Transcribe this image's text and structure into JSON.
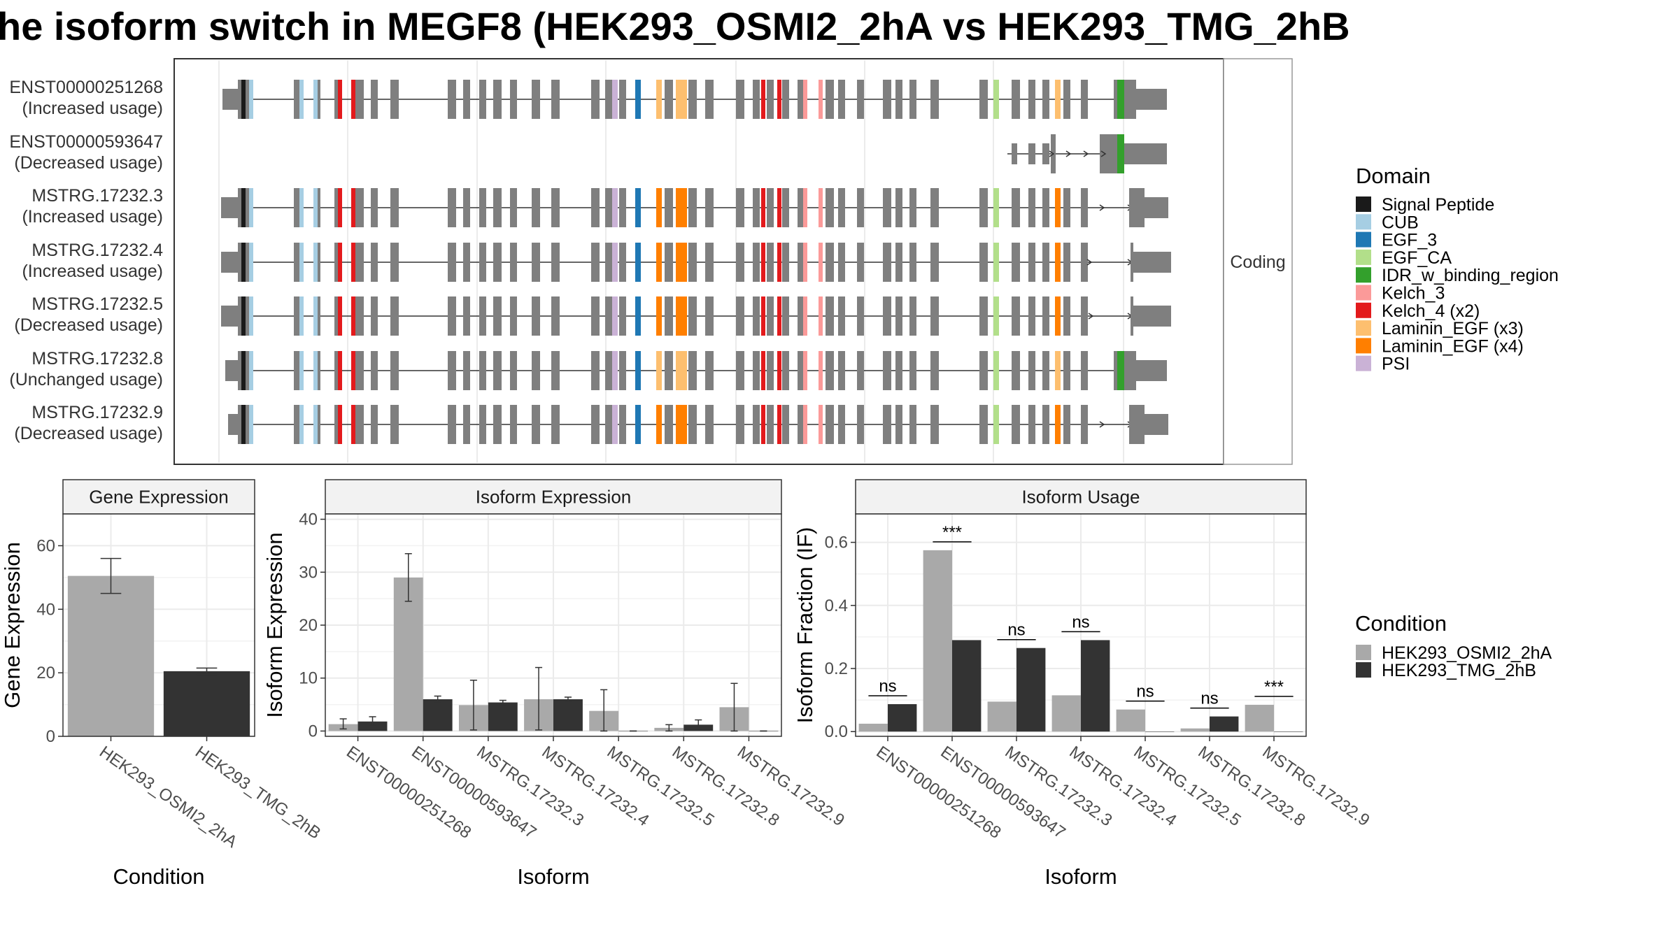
{
  "title": "he isoform switch in MEGF8 (HEK293_OSMI2_2hA vs HEK293_TMG_2hB",
  "colors": {
    "condition_a": "#a9a9a9",
    "condition_b": "#333333",
    "exon": "#7f7f7f"
  },
  "structure": {
    "facet_label": "Coding",
    "isoforms": [
      {
        "id": "ENST00000251268",
        "usage": "(Increased usage)"
      },
      {
        "id": "ENST00000593647",
        "usage": "(Decreased usage)"
      },
      {
        "id": "MSTRG.17232.3",
        "usage": "(Increased usage)"
      },
      {
        "id": "MSTRG.17232.4",
        "usage": "(Increased usage)"
      },
      {
        "id": "MSTRG.17232.5",
        "usage": "(Decreased usage)"
      },
      {
        "id": "MSTRG.17232.8",
        "usage": "(Unchanged usage)"
      },
      {
        "id": "MSTRG.17232.9",
        "usage": "(Decreased usage)"
      }
    ]
  },
  "legend": {
    "domain_title": "Domain",
    "domains": [
      {
        "label": "Signal Peptide",
        "color": "#1a1a1a"
      },
      {
        "label": "CUB",
        "color": "#a6cee3"
      },
      {
        "label": "EGF_3",
        "color": "#1f78b4"
      },
      {
        "label": "EGF_CA",
        "color": "#b2df8a"
      },
      {
        "label": "IDR_w_binding_region",
        "color": "#33a02c"
      },
      {
        "label": "Kelch_3",
        "color": "#fb9a99"
      },
      {
        "label": "Kelch_4 (x2)",
        "color": "#e31a1c"
      },
      {
        "label": "Laminin_EGF (x3)",
        "color": "#fdbf6f"
      },
      {
        "label": "Laminin_EGF (x4)",
        "color": "#ff7f00"
      },
      {
        "label": "PSI",
        "color": "#cab2d6"
      }
    ],
    "condition_title": "Condition",
    "conditions": [
      {
        "label": "HEK293_OSMI2_2hA",
        "color": "#a9a9a9"
      },
      {
        "label": "HEK293_TMG_2hB",
        "color": "#333333"
      }
    ]
  },
  "chart_data": [
    {
      "type": "bar",
      "title": "Gene Expression",
      "xlabel": "Condition",
      "ylabel": "Gene Expression",
      "categories": [
        "HEK293_OSMI2_2hA",
        "HEK293_TMG_2hB"
      ],
      "values": [
        50.5,
        20.5
      ],
      "error_low": [
        45,
        19.5
      ],
      "error_high": [
        56,
        21.5
      ],
      "yticks": [
        0,
        20,
        40,
        60
      ],
      "ylim": [
        0,
        70
      ],
      "grid": true
    },
    {
      "type": "bar",
      "title": "Isoform Expression",
      "xlabel": "Isoform",
      "ylabel": "Isoform Expression",
      "categories": [
        "ENST00000251268",
        "ENST00000593647",
        "MSTRG.17232.3",
        "MSTRG.17232.4",
        "MSTRG.17232.5",
        "MSTRG.17232.8",
        "MSTRG.17232.9"
      ],
      "series": [
        {
          "name": "HEK293_OSMI2_2hA",
          "values": [
            1.3,
            29.0,
            4.9,
            6.0,
            3.8,
            0.6,
            4.5
          ],
          "error_low": [
            0.4,
            24.5,
            0.2,
            0.2,
            0.0,
            0.0,
            0.0
          ],
          "error_high": [
            2.3,
            33.5,
            9.6,
            12.0,
            7.8,
            1.2,
            9.0
          ]
        },
        {
          "name": "HEK293_TMG_2hB",
          "values": [
            1.8,
            6.0,
            5.4,
            6.0,
            0.0,
            1.2,
            0.0
          ],
          "error_low": [
            0.9,
            5.3,
            5.0,
            5.6,
            0.0,
            0.3,
            0.0
          ],
          "error_high": [
            2.7,
            6.6,
            5.8,
            6.4,
            0.0,
            2.1,
            0.0
          ]
        }
      ],
      "yticks": [
        0,
        10,
        20,
        30,
        40
      ],
      "ylim": [
        -1,
        41
      ],
      "grid": true
    },
    {
      "type": "bar",
      "title": "Isoform Usage",
      "xlabel": "Isoform",
      "ylabel": "Isoform Fraction (IF)",
      "categories": [
        "ENST00000251268",
        "ENST00000593647",
        "MSTRG.17232.3",
        "MSTRG.17232.4",
        "MSTRG.17232.5",
        "MSTRG.17232.8",
        "MSTRG.17232.9"
      ],
      "series": [
        {
          "name": "HEK293_OSMI2_2hA",
          "values": [
            0.025,
            0.575,
            0.095,
            0.115,
            0.07,
            0.01,
            0.085
          ]
        },
        {
          "name": "HEK293_TMG_2hB",
          "values": [
            0.087,
            0.29,
            0.265,
            0.29,
            0.0,
            0.048,
            0.0
          ]
        }
      ],
      "significance": [
        "ns",
        "***",
        "ns",
        "ns",
        "ns",
        "ns",
        "***"
      ],
      "yticks": [
        "0.0",
        "0.2",
        "0.4",
        "0.6"
      ],
      "ylim": [
        -0.015,
        0.69
      ],
      "grid": true
    }
  ]
}
